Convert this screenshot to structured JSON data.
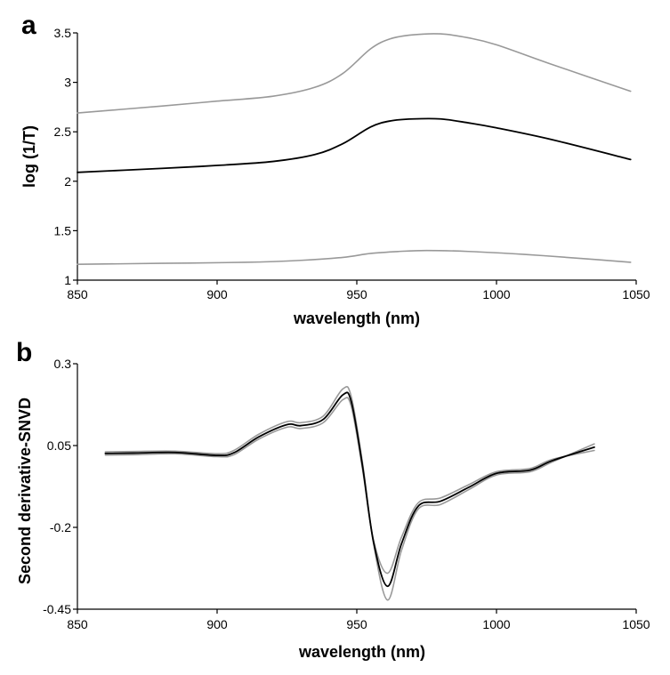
{
  "chart_data": [
    {
      "panel_label": "a",
      "type": "line",
      "xlabel": "wavelength (nm)",
      "ylabel": "log (1/T)",
      "xlim": [
        850,
        1050
      ],
      "ylim": [
        1,
        3.5
      ],
      "xticks": [
        850,
        900,
        950,
        1000,
        1050
      ],
      "yticks": [
        1,
        1.5,
        2,
        2.5,
        3,
        3.5
      ],
      "ytick_labels": [
        "1",
        "1.5",
        "2",
        "2.5",
        "3",
        "3.5"
      ],
      "grid": false,
      "series": [
        {
          "color": "#999999",
          "x": [
            850,
            880,
            900,
            920,
            935,
            945,
            955,
            962,
            970,
            980,
            990,
            1000,
            1020,
            1048
          ],
          "y": [
            2.69,
            2.76,
            2.81,
            2.86,
            2.95,
            3.09,
            3.34,
            3.44,
            3.48,
            3.49,
            3.45,
            3.38,
            3.18,
            2.91
          ]
        },
        {
          "color": "#000000",
          "x": [
            850,
            880,
            900,
            920,
            935,
            945,
            955,
            962,
            970,
            980,
            990,
            1000,
            1020,
            1048
          ],
          "y": [
            2.09,
            2.13,
            2.16,
            2.2,
            2.27,
            2.38,
            2.55,
            2.61,
            2.63,
            2.63,
            2.59,
            2.54,
            2.42,
            2.22
          ]
        },
        {
          "color": "#999999",
          "x": [
            850,
            880,
            910,
            930,
            945,
            955,
            965,
            975,
            990,
            1010,
            1030,
            1048
          ],
          "y": [
            1.16,
            1.17,
            1.18,
            1.2,
            1.23,
            1.27,
            1.29,
            1.3,
            1.29,
            1.26,
            1.22,
            1.18
          ]
        }
      ]
    },
    {
      "panel_label": "b",
      "type": "line",
      "xlabel": "wavelength (nm)",
      "ylabel": "Second derivative-SNVD",
      "xlim": [
        850,
        1050
      ],
      "ylim": [
        -0.45,
        0.3
      ],
      "xticks": [
        850,
        900,
        950,
        1000,
        1050
      ],
      "yticks": [
        -0.45,
        -0.2,
        0.05,
        0.3
      ],
      "ytick_labels": [
        "-0.45",
        "-0.2",
        "0.05",
        "0.3"
      ],
      "grid": false,
      "series": [
        {
          "color": "#999999",
          "x": [
            860,
            870,
            885,
            900,
            906,
            915,
            925,
            930,
            938,
            945,
            948,
            952,
            956,
            961,
            966,
            972,
            980,
            990,
            1000,
            1012,
            1020,
            1035
          ],
          "y": [
            0.031,
            0.032,
            0.033,
            0.025,
            0.035,
            0.085,
            0.123,
            0.12,
            0.14,
            0.223,
            0.2,
            0.0,
            -0.25,
            -0.422,
            -0.27,
            -0.144,
            -0.13,
            -0.085,
            -0.04,
            -0.03,
            0.0,
            0.055
          ]
        },
        {
          "color": "#999999",
          "x": [
            860,
            870,
            885,
            900,
            906,
            915,
            925,
            930,
            938,
            945,
            948,
            952,
            956,
            961,
            966,
            972,
            980,
            990,
            1000,
            1012,
            1020,
            1035
          ],
          "y": [
            0.021,
            0.022,
            0.025,
            0.016,
            0.022,
            0.07,
            0.106,
            0.102,
            0.12,
            0.19,
            0.17,
            -0.02,
            -0.24,
            -0.34,
            -0.23,
            -0.125,
            -0.11,
            -0.07,
            -0.03,
            -0.02,
            0.008,
            0.035
          ]
        },
        {
          "color": "#000000",
          "x": [
            860,
            870,
            885,
            900,
            906,
            915,
            925,
            930,
            938,
            945,
            948,
            952,
            956,
            961,
            966,
            972,
            980,
            990,
            1000,
            1012,
            1020,
            1035
          ],
          "y": [
            0.026,
            0.027,
            0.029,
            0.02,
            0.028,
            0.077,
            0.114,
            0.111,
            0.13,
            0.205,
            0.185,
            -0.01,
            -0.245,
            -0.38,
            -0.25,
            -0.135,
            -0.12,
            -0.078,
            -0.035,
            -0.025,
            0.004,
            0.045
          ]
        }
      ]
    }
  ]
}
